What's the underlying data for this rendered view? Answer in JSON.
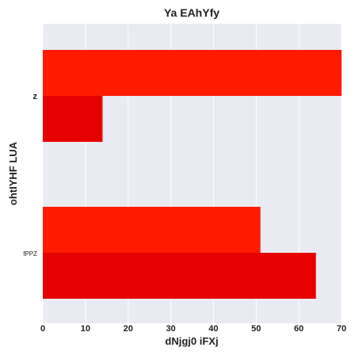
{
  "chart_data": {
    "type": "bar",
    "orientation": "horizontal",
    "title": "Ya EAhYfy",
    "xlabel": "dNjgj0 iFXj",
    "ylabel": "ohtIYHF  LUA",
    "categories": [
      "z",
      "fPPZ"
    ],
    "series": [
      {
        "values": [
          70,
          51
        ],
        "color": "#ff1a00"
      },
      {
        "values": [
          14,
          64
        ],
        "color": "#e60000"
      }
    ],
    "xlim": [
      0,
      70
    ],
    "xticks": [
      0,
      10,
      20,
      30,
      40,
      50,
      60,
      70
    ],
    "grid": true,
    "plot_background": "#eaeaf2",
    "grid_color": "#ffffff"
  }
}
